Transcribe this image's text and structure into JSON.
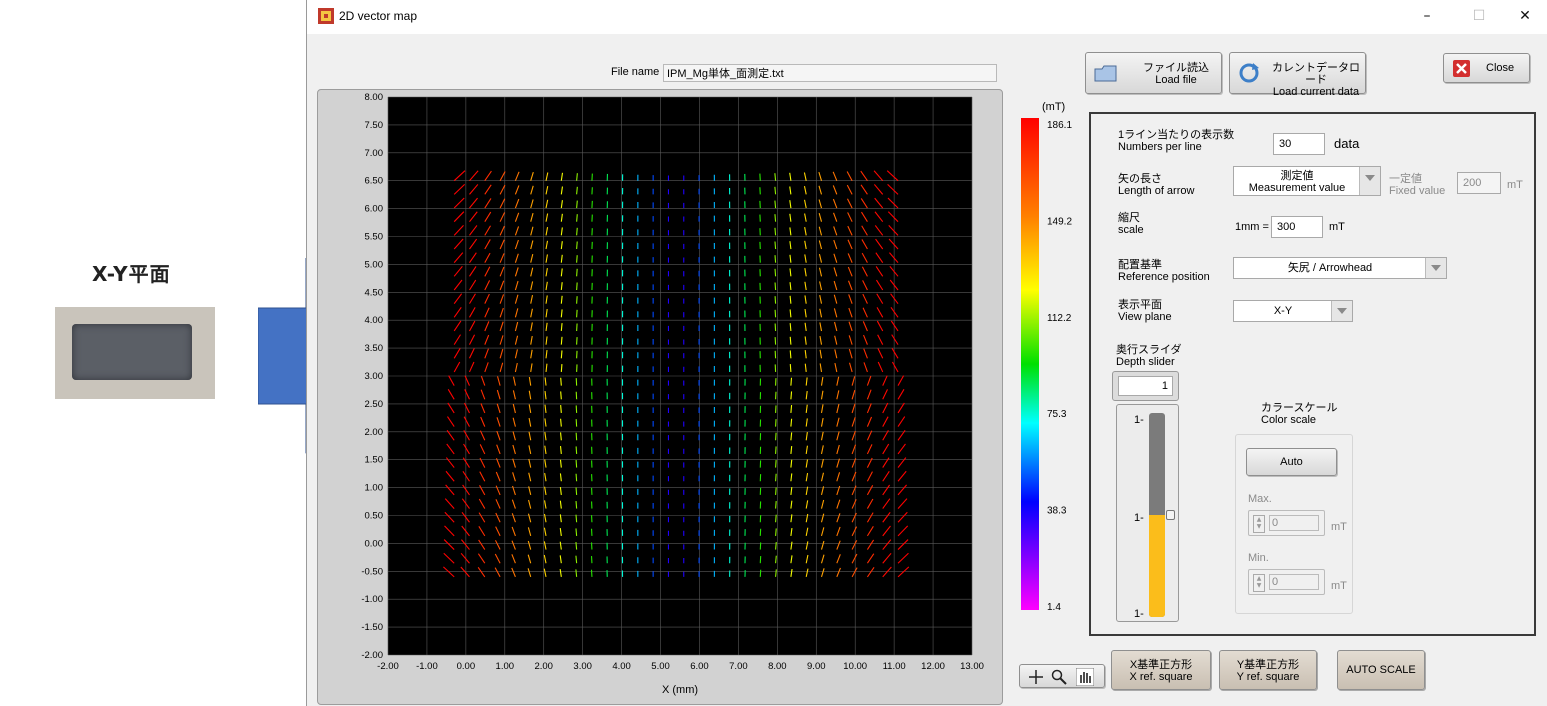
{
  "annotation": {
    "title": "X-Y平面"
  },
  "window": {
    "title": "2D vector map",
    "minimize": "–",
    "maximize": "☐",
    "close": "✕"
  },
  "file": {
    "label": "File name",
    "value": "IPM_Mg単体_面測定.txt"
  },
  "buttons": {
    "load_file_jp": "ファイル読込",
    "load_file_en": "Load file",
    "load_current_jp": "カレントデータロード",
    "load_current_en": "Load current data",
    "close": "Close",
    "x_ref_jp": "X基準正方形",
    "x_ref_en": "X ref. square",
    "y_ref_jp": "Y基準正方形",
    "y_ref_en": "Y ref. square",
    "auto_scale": "AUTO SCALE"
  },
  "settings": {
    "numbers_per_line": {
      "jp": "1ライン当たりの表示数",
      "en": "Numbers per line",
      "value": "30",
      "unit": "data"
    },
    "arrow_length": {
      "jp": "矢の長さ",
      "en": "Length of arrow",
      "dd_jp": "測定値",
      "dd_en": "Measurement value",
      "fixed_jp": "一定値",
      "fixed_en": "Fixed value",
      "fixed_val": "200",
      "fixed_unit": "mT"
    },
    "scale": {
      "jp": "縮尺",
      "en": "scale",
      "prefix": "1mm =",
      "value": "300",
      "unit": "mT"
    },
    "reference": {
      "jp": "配置基準",
      "en": "Reference position",
      "value": "矢尻 / Arrowhead"
    },
    "view_plane": {
      "jp": "表示平面",
      "en": "View plane",
      "value": "X-Y"
    },
    "depth": {
      "jp": "奥行スライダ",
      "en": "Depth slider",
      "value": "1",
      "level": 0.5,
      "ticks": [
        "1-",
        "1-",
        "1-"
      ]
    },
    "color_scale": {
      "jp": "カラースケール",
      "en": "Color scale",
      "auto": "Auto",
      "max_label": "Max.",
      "max_val": "0",
      "min_label": "Min.",
      "min_val": "0",
      "unit": "mT"
    }
  },
  "colorbar": {
    "unit": "(mT)",
    "ticks": [
      "186.1",
      "149.2",
      "112.2",
      "75.3",
      "38.3",
      "1.4"
    ]
  },
  "plot": {
    "xlabel": "X (mm)",
    "xticks": [
      "-2.00",
      "-1.00",
      "0.00",
      "1.00",
      "2.00",
      "3.00",
      "4.00",
      "5.00",
      "6.00",
      "7.00",
      "8.00",
      "9.00",
      "10.00",
      "11.00",
      "12.00",
      "13.00"
    ],
    "yticks": [
      "8.00",
      "7.50",
      "7.00",
      "6.50",
      "6.00",
      "5.50",
      "5.00",
      "4.50",
      "4.00",
      "3.50",
      "3.00",
      "2.50",
      "2.00",
      "1.50",
      "1.00",
      "0.50",
      "0.00",
      "-0.50",
      "-1.00",
      "-1.50",
      "-2.00"
    ]
  }
}
